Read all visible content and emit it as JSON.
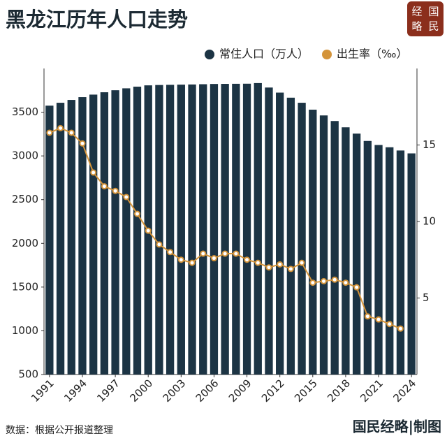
{
  "chart_data": {
    "type": "bar_line",
    "title": "黑龙江历年人口走势",
    "logo": [
      "经",
      "国",
      "略",
      "民"
    ],
    "categories": [
      "1991",
      null,
      null,
      "1994",
      null,
      null,
      "1997",
      null,
      null,
      "2000",
      null,
      null,
      "2003",
      null,
      null,
      "2006",
      null,
      null,
      "2009",
      null,
      null,
      "2012",
      null,
      null,
      "2015",
      null,
      null,
      "2018",
      null,
      null,
      "2021",
      null,
      null,
      "2024"
    ],
    "series": [
      {
        "name": "常住人口（万人）",
        "color": "#1c3444",
        "type": "bar",
        "values": [
          3575,
          3608,
          3640,
          3672,
          3701,
          3728,
          3751,
          3773,
          3792,
          3807,
          3811,
          3813,
          3815,
          3817,
          3820,
          3823,
          3824,
          3825,
          3826,
          3833,
          3782,
          3724,
          3666,
          3608,
          3529,
          3463,
          3399,
          3327,
          3255,
          3171,
          3125,
          3099,
          3062,
          3029
        ]
      },
      {
        "name": "出生率（‰）",
        "color": "#d4943a",
        "type": "line",
        "axis": "y2",
        "values": [
          15.8,
          16.1,
          15.8,
          15.1,
          13.2,
          12.3,
          12.0,
          11.6,
          10.5,
          9.4,
          8.5,
          8.0,
          7.5,
          7.3,
          7.9,
          7.6,
          7.9,
          7.9,
          7.5,
          7.3,
          7.0,
          7.2,
          6.9,
          7.3,
          6.0,
          6.1,
          6.2,
          6.0,
          5.7,
          3.8,
          3.6,
          3.3,
          3.0,
          null
        ]
      }
    ],
    "ylim": [
      500,
      4000
    ],
    "yticks": [
      500,
      1000,
      1500,
      2000,
      2500,
      3000,
      3500
    ],
    "y2lim": [
      0,
      20
    ],
    "y2ticks": [
      5,
      10,
      15
    ],
    "legend": "top-right",
    "source": "数据：根据公开报道整理",
    "credit": "国民经略|制图"
  }
}
